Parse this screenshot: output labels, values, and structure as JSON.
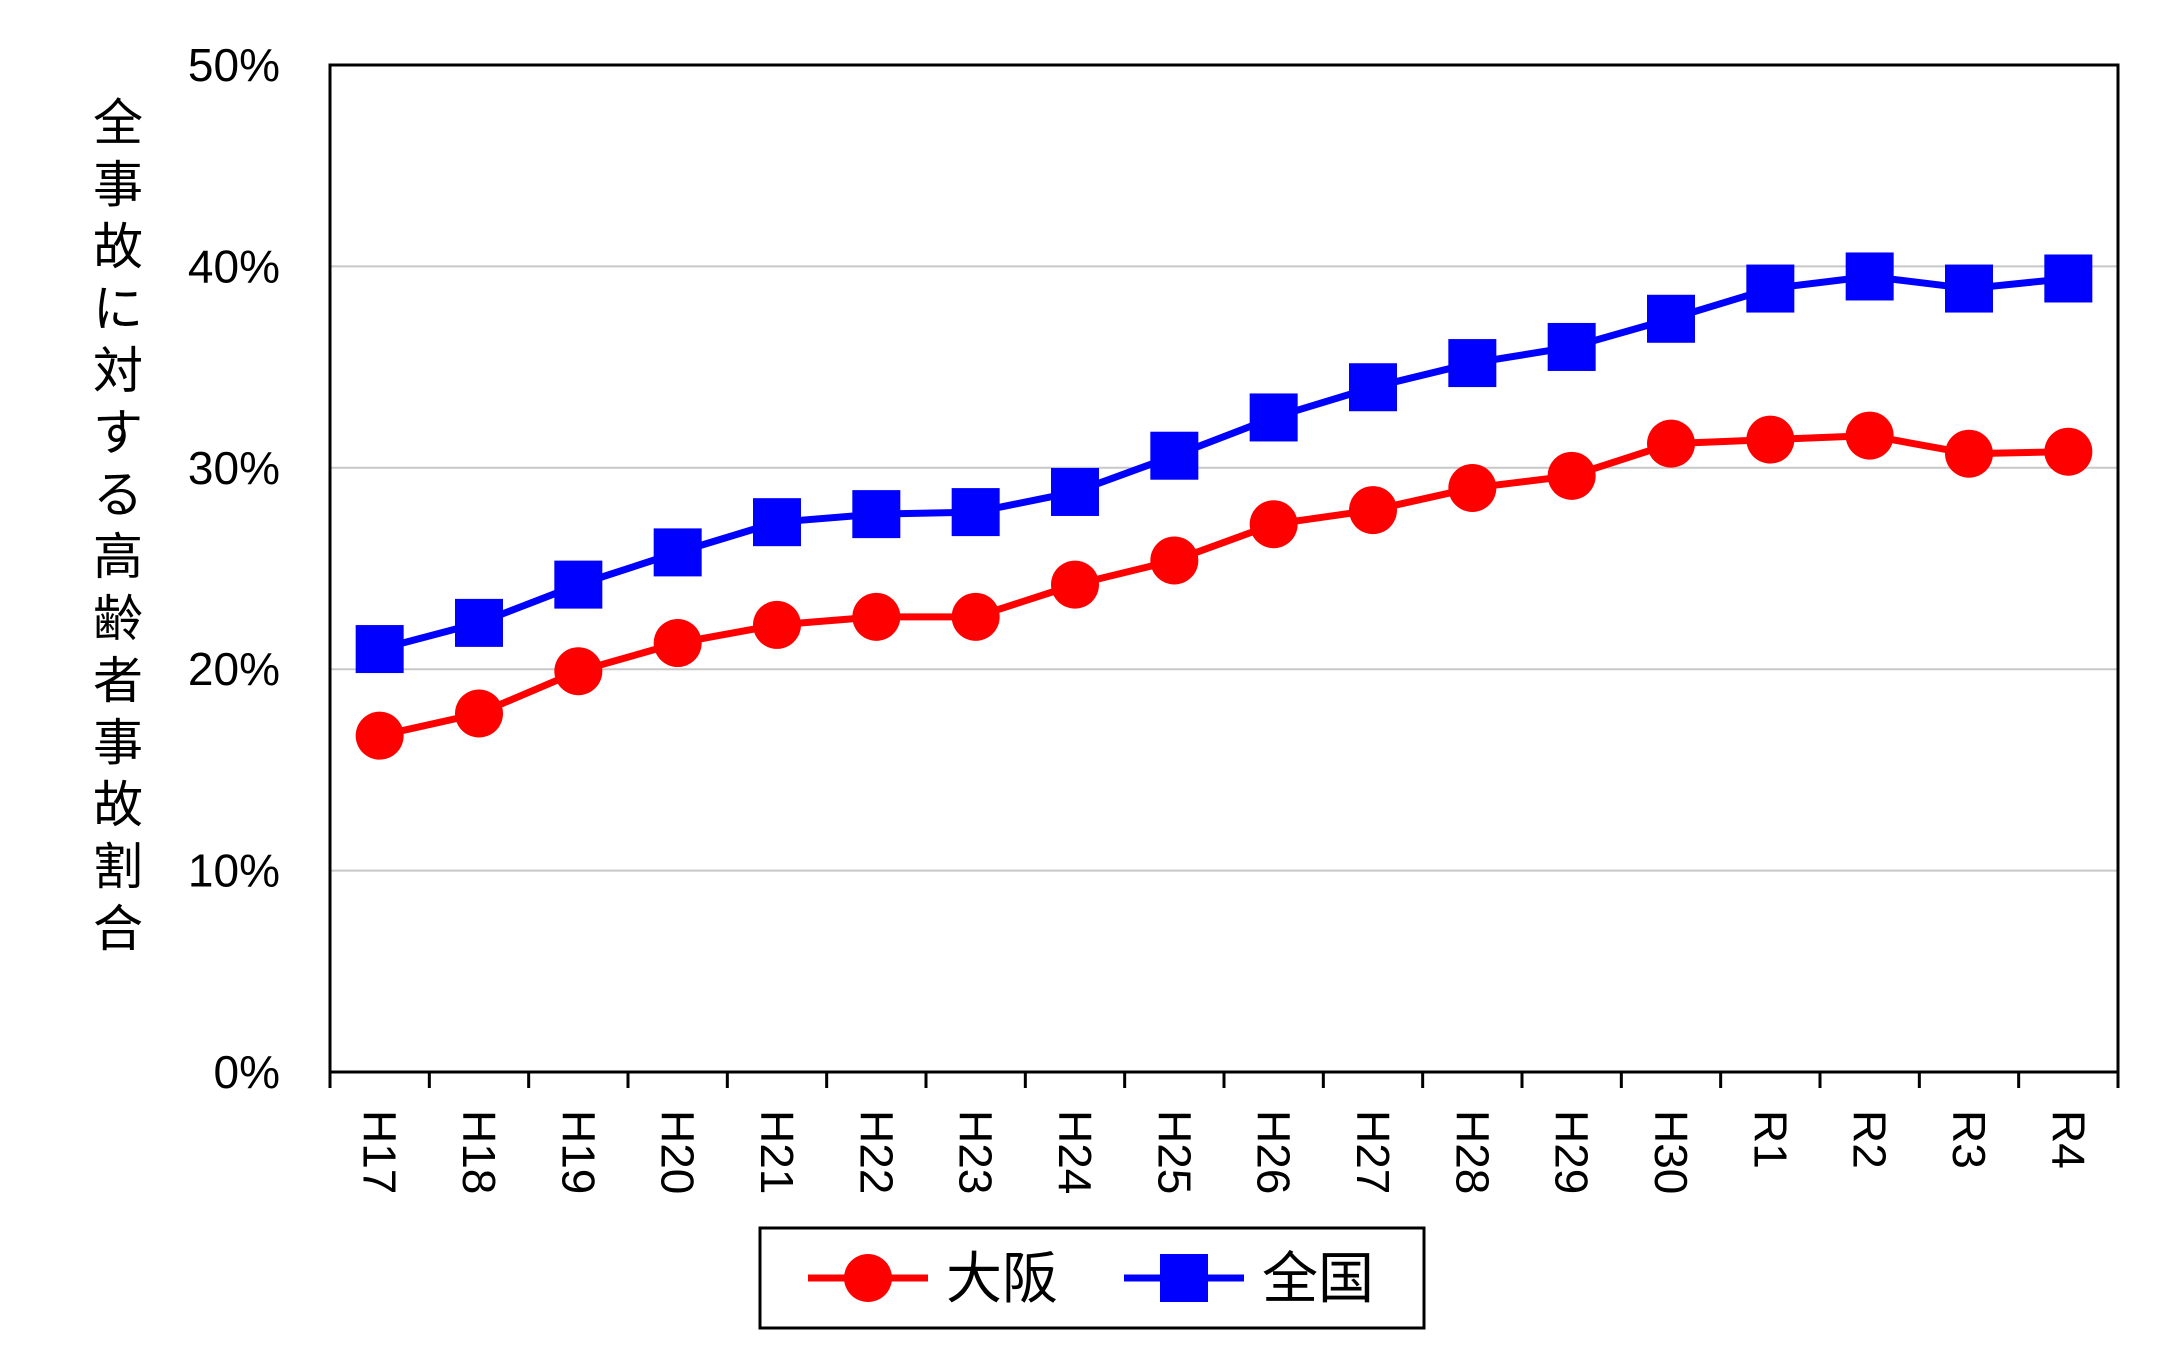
{
  "chart_data": {
    "type": "line",
    "title": "",
    "xlabel": "",
    "ylabel": "全事故に対する高齢者事故割合",
    "categories": [
      "H17",
      "H18",
      "H19",
      "H20",
      "H21",
      "H22",
      "H23",
      "H24",
      "H25",
      "H26",
      "H27",
      "H28",
      "H29",
      "H30",
      "R1",
      "R2",
      "R3",
      "R4"
    ],
    "yticks": [
      "0%",
      "10%",
      "20%",
      "30%",
      "40%",
      "50%"
    ],
    "ylim": [
      0,
      50
    ],
    "grid": true,
    "legend_position": "bottom-center",
    "series": [
      {
        "name": "大阪",
        "color": "#ff0000",
        "marker": "circle",
        "values": [
          16.7,
          17.8,
          19.9,
          21.3,
          22.2,
          22.6,
          22.6,
          24.2,
          25.4,
          27.2,
          27.9,
          29.0,
          29.6,
          31.2,
          31.4,
          31.6,
          30.7,
          30.8
        ]
      },
      {
        "name": "全国",
        "color": "#0000ff",
        "marker": "square",
        "values": [
          21.0,
          22.3,
          24.2,
          25.8,
          27.3,
          27.7,
          27.8,
          28.8,
          30.6,
          32.5,
          34.0,
          35.2,
          36.0,
          37.4,
          38.9,
          39.5,
          38.9,
          39.4
        ]
      }
    ]
  }
}
